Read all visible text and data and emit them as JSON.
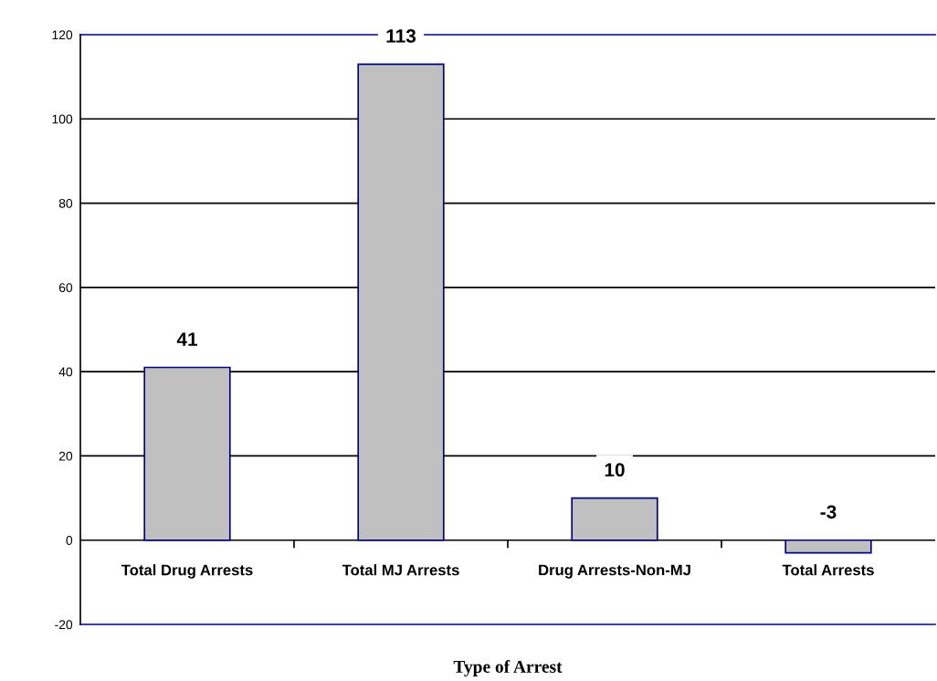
{
  "chart_data": {
    "type": "bar",
    "xlabel": "Type of Arrest",
    "categories": [
      "Total Drug Arrests",
      "Total MJ Arrests",
      "Drug Arrests-Non-MJ",
      "Total Arrests"
    ],
    "values": [
      41,
      113,
      10,
      -3
    ],
    "color": "#c0c0c0",
    "ylim": [
      -20,
      120
    ],
    "yticks": [
      -20,
      0,
      20,
      40,
      60,
      80,
      100,
      120
    ],
    "grid": "y",
    "data_labels": true
  }
}
